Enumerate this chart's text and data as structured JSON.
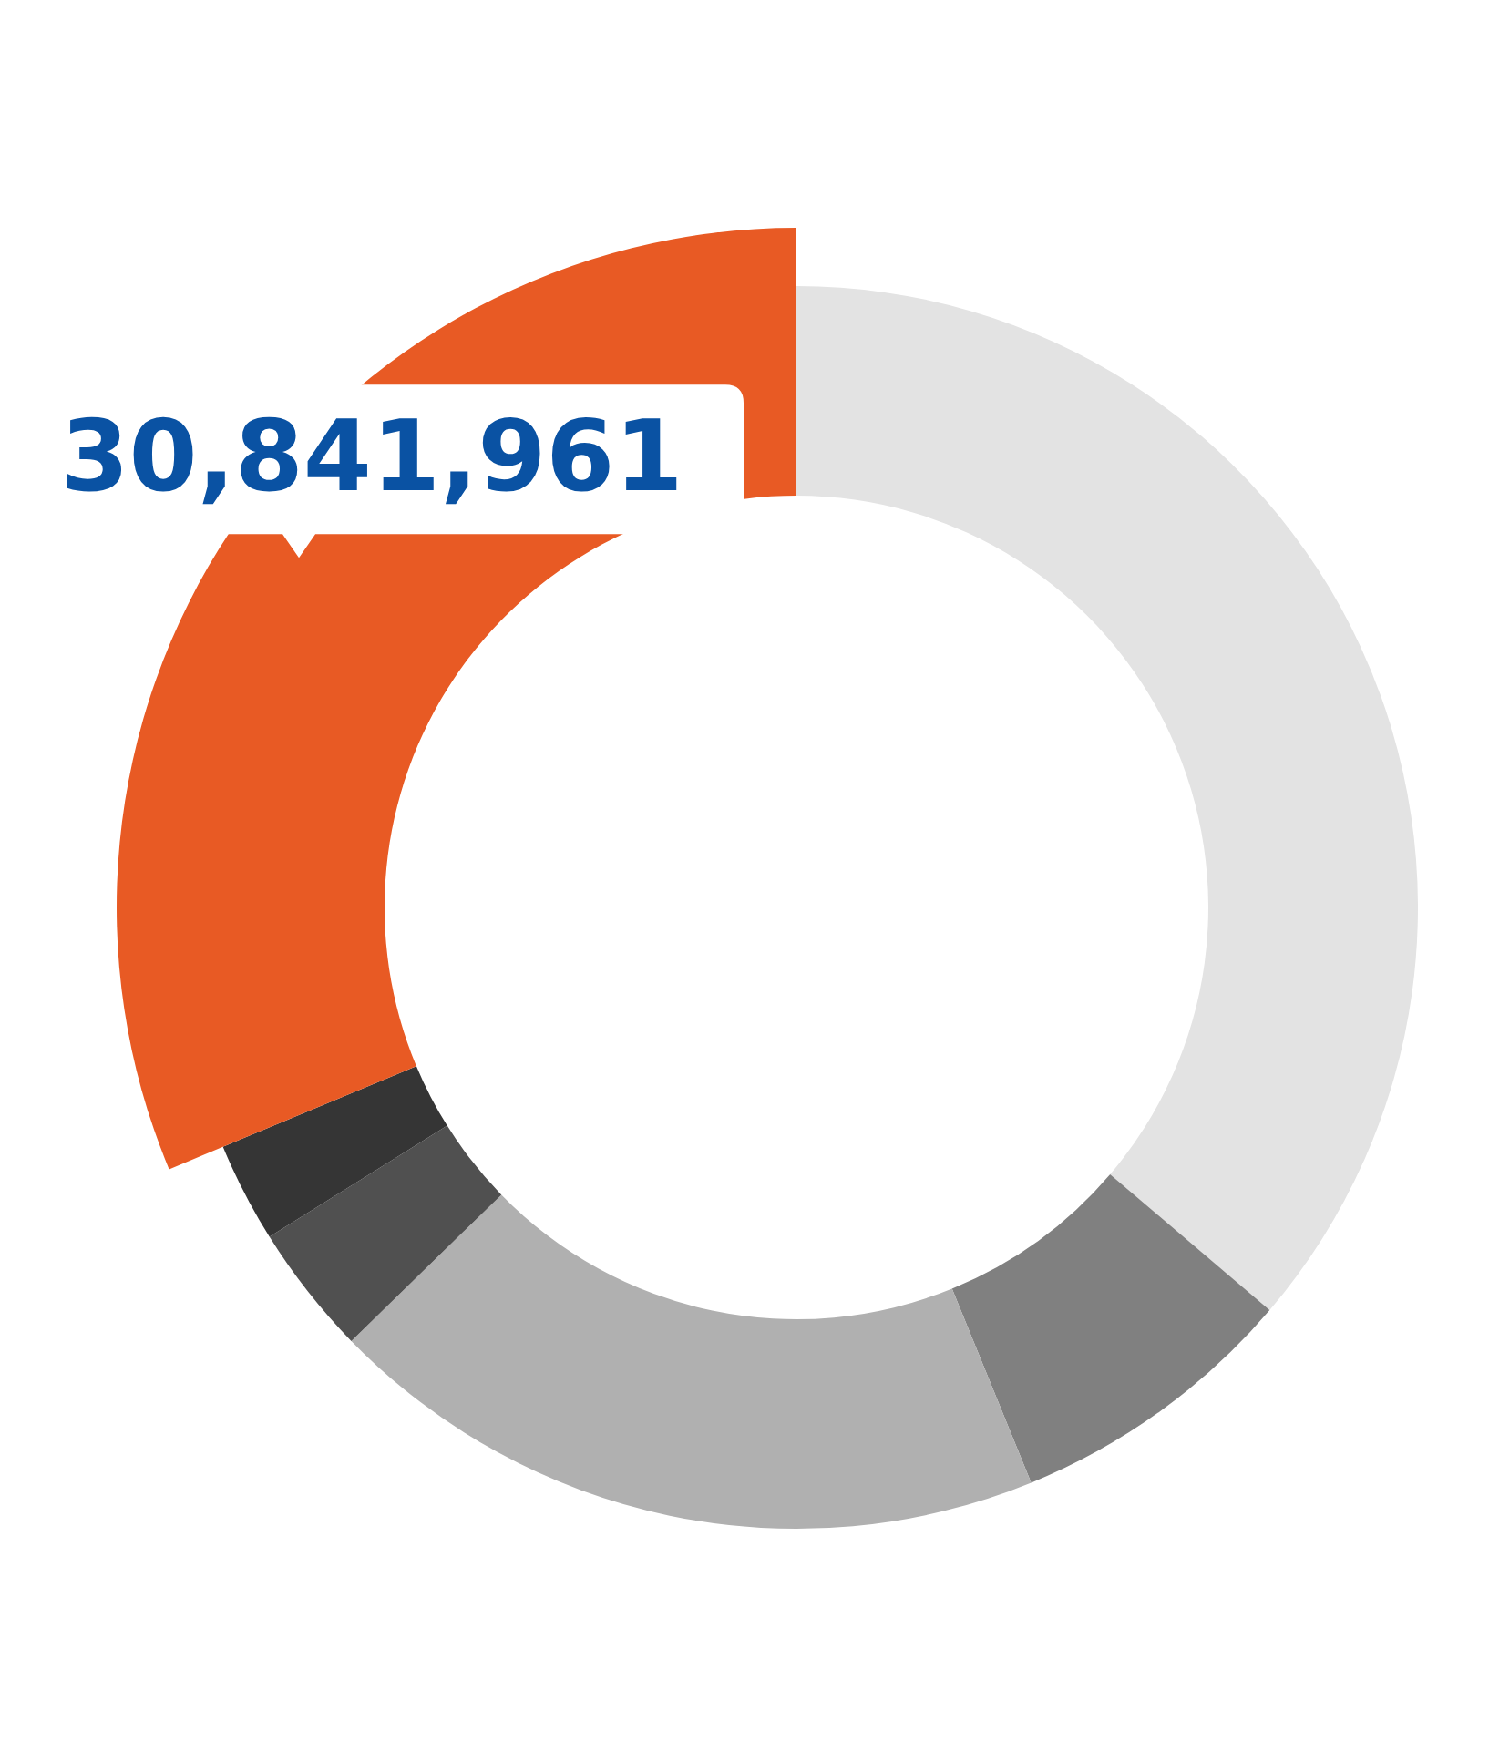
{
  "chart_data": {
    "type": "donut",
    "categories": [
      null,
      null,
      null,
      null,
      null,
      null
    ],
    "values": [
      35700000,
      7500000,
      18600000,
      3350000,
      2560000,
      30841961
    ],
    "colors": [
      "#e3e3e3",
      "#808080",
      "#b0b0b0",
      "#505050",
      "#353535",
      "#e85a24"
    ],
    "value_labels": [
      null,
      null,
      null,
      null,
      null,
      "30,841,961"
    ]
  }
}
